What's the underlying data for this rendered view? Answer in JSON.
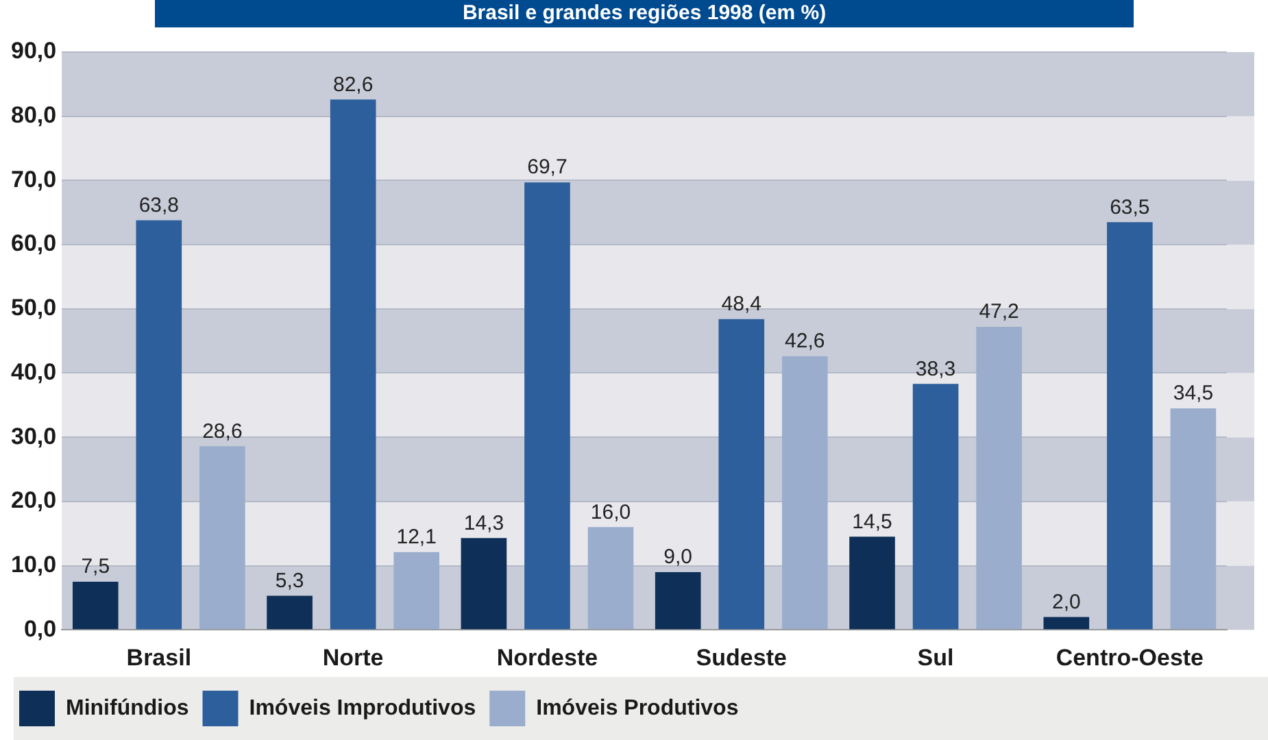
{
  "chart_data": {
    "type": "bar",
    "title": "Brasil e grandes regiões 1998 (em %)",
    "categories": [
      "Brasil",
      "Norte",
      "Nordeste",
      "Sudeste",
      "Sul",
      "Centro-Oeste"
    ],
    "series": [
      {
        "name": "Minifúndios",
        "color": "#0e2f57",
        "values": [
          7.5,
          5.3,
          14.3,
          9.0,
          14.5,
          2.0
        ],
        "value_labels": [
          "7,5",
          "5,3",
          "14,3",
          "9,0",
          "14,5",
          "2,0"
        ]
      },
      {
        "name": "Imóveis Improdutivos",
        "color": "#2c5f9b",
        "values": [
          63.8,
          82.6,
          69.7,
          48.4,
          38.3,
          63.5
        ],
        "value_labels": [
          "63,8",
          "82,6",
          "69,7",
          "48,4",
          "38,3",
          "63,5"
        ]
      },
      {
        "name": "Imóveis Produtivos",
        "color": "#9aadcc",
        "values": [
          28.6,
          12.1,
          16.0,
          42.6,
          47.2,
          34.5
        ],
        "value_labels": [
          "28,6",
          "12,1",
          "16,0",
          "42,6",
          "47,2",
          "34,5"
        ]
      }
    ],
    "ylim": [
      0,
      90
    ],
    "yticks": [
      {
        "value": 0,
        "label": "0,0"
      },
      {
        "value": 10,
        "label": "10,0"
      },
      {
        "value": 20,
        "label": "20,0"
      },
      {
        "value": 30,
        "label": "30,0"
      },
      {
        "value": 40,
        "label": "40,0"
      },
      {
        "value": 50,
        "label": "50,0"
      },
      {
        "value": 60,
        "label": "60,0"
      },
      {
        "value": 70,
        "label": "70,0"
      },
      {
        "value": 80,
        "label": "80,0"
      },
      {
        "value": 90,
        "label": "90,0"
      }
    ],
    "grid": "y",
    "legend": "bottom"
  }
}
